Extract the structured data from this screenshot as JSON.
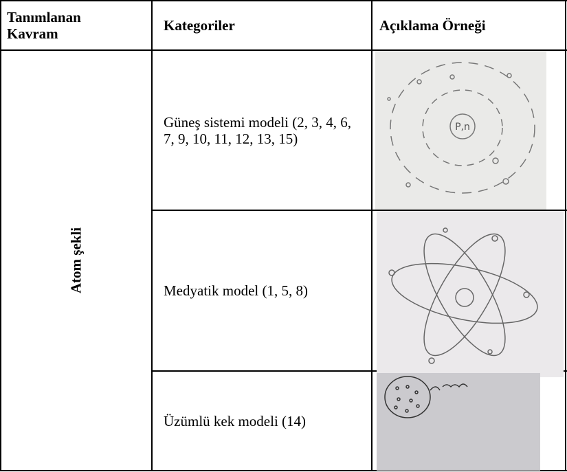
{
  "table": {
    "header": [
      "Tanımlanan Kavram",
      "Kategoriler",
      "Açıklama Örneği"
    ],
    "concept": "Atom şekli",
    "rows": [
      {
        "category": "Güneş sistemi modeli (2, 3, 4, 6, 7, 9, 10, 11, 12, 13, 15)",
        "sketch_label": "P,n"
      },
      {
        "category": "Medyatik model (1, 5, 8)"
      },
      {
        "category": "Üzümlü kek modeli (14)"
      }
    ]
  }
}
